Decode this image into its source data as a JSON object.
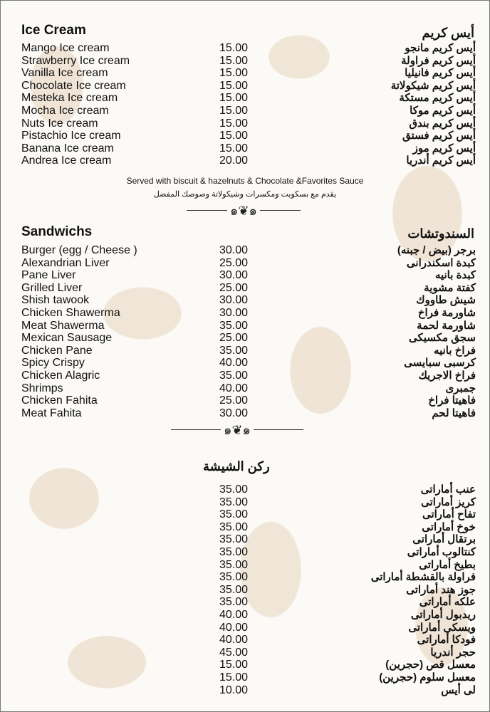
{
  "ice_cream": {
    "title_en": "Ice Cream",
    "title_ar": "أيس كريم",
    "items": [
      {
        "en": "Mango Ice cream",
        "price": "15.00",
        "ar": "أيس كريم مانجو"
      },
      {
        "en": "Strawberry Ice cream",
        "price": "15.00",
        "ar": "أيس كريم فراولة"
      },
      {
        "en": "Vanilla Ice cream",
        "price": "15.00",
        "ar": "أيس كريم فانيليا"
      },
      {
        "en": "Chocolate Ice cream",
        "price": "15.00",
        "ar": "أيس كريم شيكولاتة"
      },
      {
        "en": "Mesteka Ice cream",
        "price": "15.00",
        "ar": "أيس كريم مستكة"
      },
      {
        "en": "Mocha Ice cream",
        "price": "15.00",
        "ar": "أيس كريم موكا"
      },
      {
        "en": "Nuts Ice cream",
        "price": "15.00",
        "ar": "أيس كريم بندق"
      },
      {
        "en": "Pistachio Ice cream",
        "price": "15.00",
        "ar": "أيس كريم فستق"
      },
      {
        "en": "Banana Ice cream",
        "price": "15.00",
        "ar": "أيس كريم موز"
      },
      {
        "en": "Andrea Ice cream",
        "price": "20.00",
        "ar": "أيس كريم أندريا"
      }
    ],
    "note_en": "Served with biscuit & hazelnuts & Chocolate &Favorites Sauce",
    "note_ar": "يقدم مع بسكويت ومكسرات وشيكولاتة وصوصك المفضل"
  },
  "sandwiches": {
    "title_en": "Sandwichs",
    "title_ar": "السندوتشات",
    "items": [
      {
        "en": "Burger (egg / Cheese )",
        "price": "30.00",
        "ar": "برجر (بيض / جبنه)"
      },
      {
        "en": "Alexandrian Liver",
        "price": "25.00",
        "ar": "كبدة اسكندرانى"
      },
      {
        "en": "Pane Liver",
        "price": "30.00",
        "ar": "كبدة بانيه"
      },
      {
        "en": "Grilled Liver",
        "price": "25.00",
        "ar": "كفتة مشوية"
      },
      {
        "en": "Shish tawook",
        "price": "30.00",
        "ar": "شيش طاووك"
      },
      {
        "en": "Chicken Shawerma",
        "price": "30.00",
        "ar": "شاورمة فراخ"
      },
      {
        "en": "Meat Shawerma",
        "price": "35.00",
        "ar": "شاورمة لحمة"
      },
      {
        "en": "Mexican Sausage",
        "price": "25.00",
        "ar": "سجق مكسيكى"
      },
      {
        "en": "Chicken Pane",
        "price": "35.00",
        "ar": "فراخ بانيه"
      },
      {
        "en": "Spicy Crispy",
        "price": "40.00",
        "ar": "كرسبى سبايسى"
      },
      {
        "en": "Chicken Alagric",
        "price": "35.00",
        "ar": "فراخ الاجريك"
      },
      {
        "en": "Shrimps",
        "price": "40.00",
        "ar": "جمبرى"
      },
      {
        "en": "Chicken Fahita",
        "price": "25.00",
        "ar": "فاهيتا فراخ"
      },
      {
        "en": "Meat Fahita",
        "price": "30.00",
        "ar": "فاهيتا لحم"
      }
    ]
  },
  "shisha": {
    "title_ar": "ركن الشيشة",
    "items": [
      {
        "price": "35.00",
        "ar": "عنب أماراتى"
      },
      {
        "price": "35.00",
        "ar": "كريز أماراتى"
      },
      {
        "price": "35.00",
        "ar": "تفاح أماراتى"
      },
      {
        "price": "35.00",
        "ar": "خوخ أماراتى"
      },
      {
        "price": "35.00",
        "ar": "برتقال أماراتى"
      },
      {
        "price": "35.00",
        "ar": "كنتالوب أماراتى"
      },
      {
        "price": "35.00",
        "ar": "بطيخ أماراتى"
      },
      {
        "price": "35.00",
        "ar": "فراولة بالقشطة أماراتى"
      },
      {
        "price": "35.00",
        "ar": "جوز هند أماراتى"
      },
      {
        "price": "35.00",
        "ar": "علكه أماراتى"
      },
      {
        "price": "40.00",
        "ar": "ريدبول أماراتى"
      },
      {
        "price": "40.00",
        "ar": "ويسكى أماراتى"
      },
      {
        "price": "40.00",
        "ar": "فودكا أماراتى"
      },
      {
        "price": "45.00",
        "ar": "حجر أندريا"
      },
      {
        "price": "15.00",
        "ar": "معسل قص (حجرين)"
      },
      {
        "price": "15.00",
        "ar": "معسل سلوم (حجرين)"
      },
      {
        "price": "10.00",
        "ar": "لى أيس"
      }
    ]
  },
  "colors": {
    "background": "#fcfaf6",
    "pattern": "#efe4d5",
    "text": "#111111"
  }
}
